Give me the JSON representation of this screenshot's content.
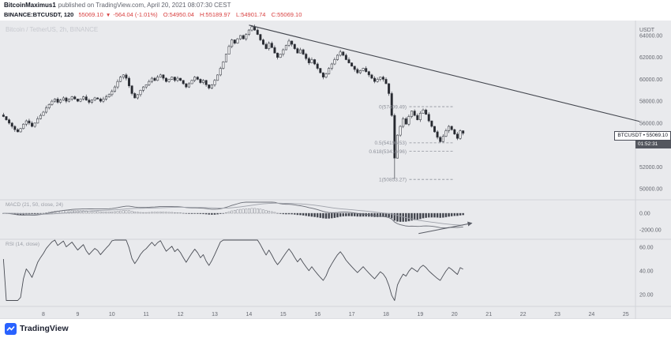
{
  "header": {
    "author": "BitcoinMaximus1",
    "published": "published on TradingView.com, April 20, 2021 08:07:30 CEST",
    "symbol_line": {
      "symbol": "BINANCE:BTCUSDT, 120",
      "price": "55069.10",
      "direction": "▼",
      "change": "-564.04 (-1.01%)",
      "open": "O:54950.04",
      "high": "H:55189.97",
      "low": "L:54901.74",
      "close": "C:55069.10"
    }
  },
  "watermark": "Bitcoin / TetherUS, 2h, BINANCE",
  "panels": {
    "macd_label": "MACD (21, 50, close, 24)",
    "rsi_label": "RSI (14, close)"
  },
  "price_tag": {
    "label": "BTCUSDT • 55069.10",
    "countdown": "01:52:31"
  },
  "price_axis": {
    "unit": "USDT",
    "ticks": [
      "64000.00",
      "62000.00",
      "60000.00",
      "58000.00",
      "56000.00",
      "54000.00",
      "52000.00",
      "50000.00"
    ]
  },
  "macd_axis": [
    "0.00",
    "-2000.00"
  ],
  "rsi_axis": [
    "60.00",
    "40.00",
    "20.00"
  ],
  "time_axis": [
    "8",
    "9",
    "10",
    "11",
    "12",
    "13",
    "14",
    "15",
    "16",
    "17",
    "18",
    "19",
    "20",
    "21",
    "22",
    "23",
    "24",
    "25"
  ],
  "footer": {
    "brand": "TradingView"
  },
  "colors": {
    "background": "#e9eaed",
    "separator": "#d2d4d9",
    "candle_up": "#fbfbfc",
    "candle_down": "#24262c",
    "candle_stroke": "#3b3e46",
    "trendline": "#44474f",
    "fib": "#8f929b",
    "hist_pos": "#f4f5f7",
    "hist_neg": "#3c3f47",
    "hist_stroke": "#70737c",
    "macd_line": "#6b6e77",
    "signal_line": "#9fa2aa",
    "rsi_line": "#4a4d55",
    "line_dark": "#5a5d66",
    "axis_text": "#64676f",
    "accent_red": "#d84040",
    "brand_blue": "#2962ff"
  },
  "chart_data": {
    "type": "candlestick",
    "symbol": "BINANCE:BTCUSDT",
    "interval": "2h",
    "title": "Bitcoin / TetherUS, 2h, BINANCE",
    "ylabel": "USDT",
    "ylim": [
      50000,
      64000
    ],
    "x_range_days": [
      7,
      25
    ],
    "start_day": 6.8333,
    "step_days": 0.0833333,
    "closes": [
      56600,
      56300,
      56000,
      55700,
      55400,
      55200,
      55500,
      55900,
      56200,
      56000,
      55700,
      56000,
      56400,
      56700,
      57000,
      57400,
      57700,
      58000,
      58200,
      57900,
      58100,
      58300,
      58000,
      58200,
      58400,
      58200,
      58000,
      58200,
      58400,
      58100,
      57900,
      58100,
      58300,
      58200,
      58000,
      58200,
      58400,
      58600,
      58900,
      59300,
      59800,
      60200,
      60400,
      60100,
      59400,
      58700,
      58300,
      58600,
      59000,
      59300,
      59500,
      59800,
      60100,
      59900,
      60200,
      60400,
      60100,
      59800,
      60000,
      60200,
      59900,
      60100,
      59900,
      59600,
      59300,
      59600,
      59900,
      60200,
      60000,
      59700,
      59900,
      59500,
      59200,
      59500,
      59900,
      60400,
      61000,
      61600,
      62300,
      63000,
      63600,
      63300,
      63700,
      64000,
      63700,
      64100,
      64500,
      64800,
      64500,
      64100,
      63600,
      63200,
      62800,
      63300,
      62900,
      62400,
      62000,
      62300,
      62700,
      63100,
      63500,
      63200,
      62800,
      62400,
      62700,
      62300,
      61900,
      61500,
      61800,
      61400,
      61000,
      60600,
      60200,
      60500,
      61000,
      61400,
      61800,
      62200,
      62500,
      62200,
      61800,
      61500,
      61200,
      60900,
      60600,
      60800,
      61000,
      60700,
      60400,
      60100,
      59800,
      60000,
      60200,
      60000,
      59600,
      58700,
      56700,
      52800,
      54900,
      55700,
      56400,
      55900,
      56600,
      57100,
      56700,
      56300,
      56900,
      57200,
      56800,
      56200,
      55700,
      55200,
      54700,
      54300,
      54800,
      55300,
      55700,
      55400,
      55000,
      54600,
      55300,
      55069.1
    ],
    "wick_overrides": {
      "87": {
        "high": 64950
      },
      "137": {
        "low": 50900
      }
    },
    "trendline": {
      "from_day": 14.0,
      "from_price": 64950,
      "to_day": 25.4,
      "to_price": 56150
    },
    "fib_levels": [
      {
        "label": "0(57499.49)",
        "price": 57499.49
      },
      {
        "label": "0.5(54196.53)",
        "price": 54196.53
      },
      {
        "label": "0.618(53416.96)",
        "price": 53416.96
      },
      {
        "label": "1(50853.27)",
        "price": 50853.27
      }
    ],
    "macd_arrow": {
      "from_day": 18.95,
      "from_value": -2450,
      "to_day": 20.5,
      "to_value": -1200
    },
    "indicators": {
      "macd": {
        "fast": 21,
        "slow": 50,
        "source": "close",
        "signal": 24
      },
      "rsi": {
        "length": 14,
        "source": "close"
      }
    }
  }
}
